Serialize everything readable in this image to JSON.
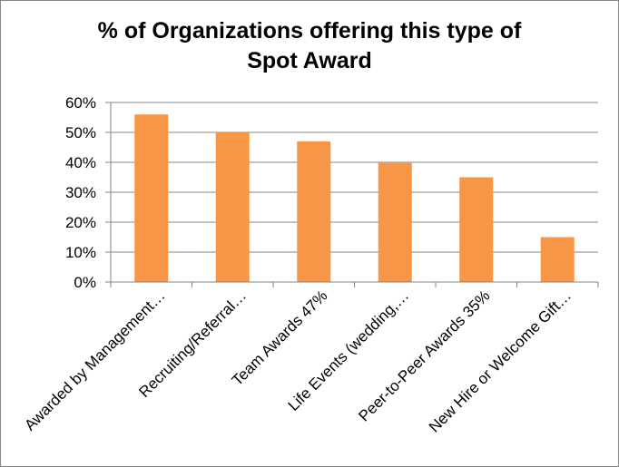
{
  "chart_data": {
    "type": "bar",
    "title_lines": [
      "% of Organizations offering this type of",
      "Spot Award"
    ],
    "categories": [
      "Awarded by Management…",
      "Recruiting/Referral…",
      "Team Awards 47%",
      "Life Events (wedding,…",
      "Peer-to-Peer Awards 35%",
      "New Hire or Welcome Gift…"
    ],
    "values": [
      56,
      50,
      47,
      40,
      35,
      15
    ],
    "y_ticks": [
      "0%",
      "10%",
      "20%",
      "30%",
      "40%",
      "50%",
      "60%"
    ],
    "ylim": [
      0,
      60
    ],
    "grid": true,
    "legend": "none",
    "bar_color": "#F79646",
    "axis_color": "#868686",
    "grid_color": "#868686"
  }
}
